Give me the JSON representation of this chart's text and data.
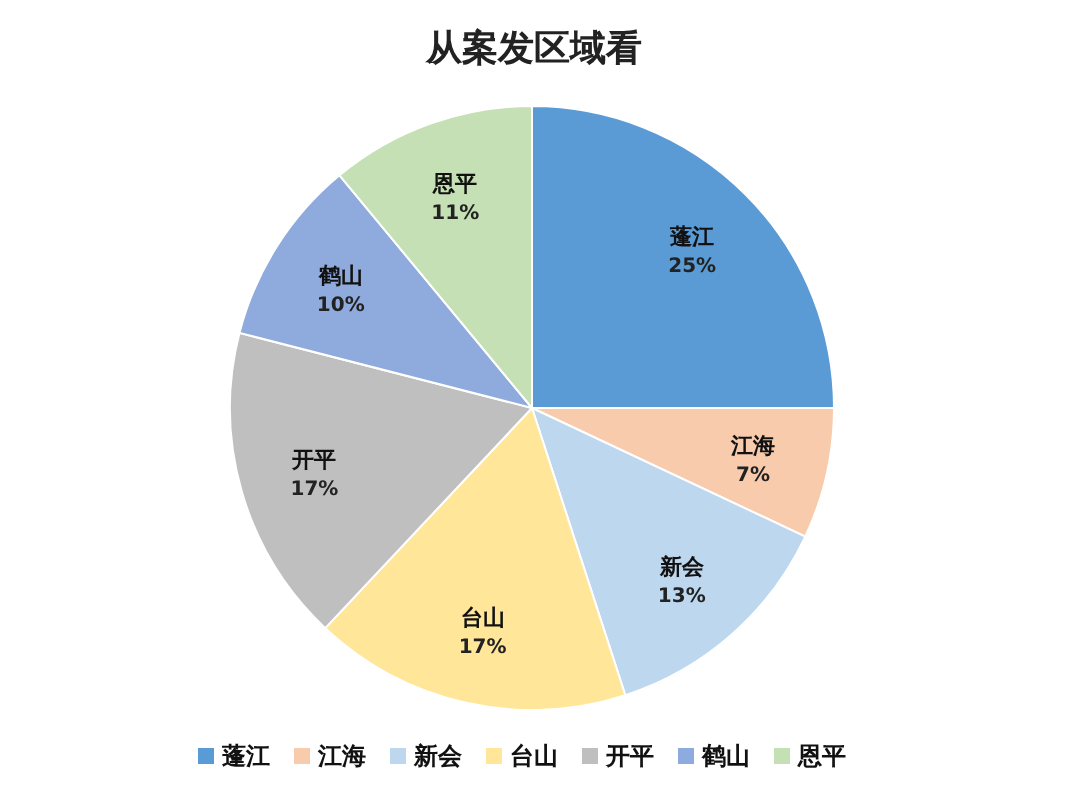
{
  "chart_data": {
    "type": "pie",
    "title": "从案发区域看",
    "categories": [
      "蓬江",
      "江海",
      "新会",
      "台山",
      "开平",
      "鹤山",
      "恩平"
    ],
    "values": [
      25,
      7,
      13,
      17,
      17,
      10,
      11
    ],
    "colors": [
      "#5b9bd5",
      "#f8cbad",
      "#bdd7ee",
      "#ffe699",
      "#bfbfbf",
      "#8faadc",
      "#c5e0b4"
    ],
    "value_labels": [
      "25%",
      "7%",
      "13%",
      "17%",
      "17%",
      "10%",
      "11%"
    ],
    "legend": "bottom"
  }
}
